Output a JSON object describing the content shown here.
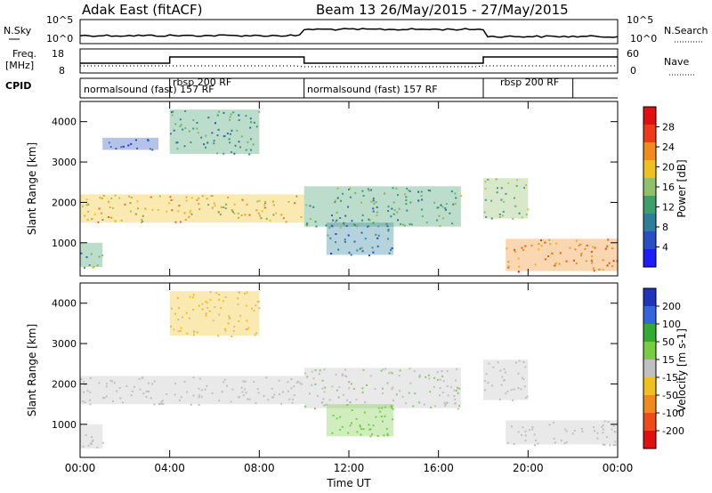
{
  "header": {
    "title_left": "Adak East (fitACF)",
    "title_right": "Beam 13 26/May/2015 - 27/May/2015"
  },
  "summary": {
    "nsky_label": "N.Sky",
    "nsky_ticks": [
      "10^5",
      "10^0"
    ],
    "nsearch_label": "N.Search",
    "nsearch_ticks": [
      "10^5",
      "10^0"
    ],
    "freq_label": "Freq.",
    "freq_unit": "[MHz]",
    "freq_ticks": [
      "18",
      "8"
    ],
    "nave_label": "Nave",
    "nave_ticks": [
      "60",
      "0"
    ],
    "cpid_label": "CPID",
    "cpid_segments": [
      {
        "label": "normalsound (fast) 157 RF",
        "start_h": 0.0,
        "end_h": 4.0
      },
      {
        "label": "rbsp 200 RF",
        "start_h": 4.0,
        "end_h": 10.0
      },
      {
        "label": "normalsound (fast) 157 RF",
        "start_h": 10.0,
        "end_h": 18.0
      },
      {
        "label": "rbsp 200 RF",
        "start_h": 18.0,
        "end_h": 22.0
      }
    ]
  },
  "colors": {
    "power": [
      "#1d1df5",
      "#2a4fc0",
      "#2e7d9a",
      "#3f9f6a",
      "#8fc06a",
      "#f0c020",
      "#f28b1e",
      "#ee3a1a",
      "#e01010"
    ],
    "velocity": [
      "#2233bb",
      "#3366dd",
      "#33aa33",
      "#77cc44",
      "#c0c0c0",
      "#f0c020",
      "#f08a1e",
      "#ee4a1a",
      "#e01010"
    ]
  },
  "chart_data": [
    {
      "type": "heatmap",
      "panel": "power",
      "ylabel": "Slant Range [km]",
      "y_ticks": [
        1000,
        2000,
        3000,
        4000
      ],
      "ylim": [
        180,
        4500
      ],
      "xlim_hours": [
        0,
        24
      ],
      "colorbar_label": "Power [dB]",
      "colorbar_ticks": [
        "28",
        "24",
        "20",
        "16",
        "12",
        "8",
        "4"
      ],
      "colorbar_range": [
        0,
        30
      ],
      "echo_regions": [
        {
          "t0": 0.0,
          "t1": 10.0,
          "r0": 1500,
          "r1": 2200,
          "level": 18
        },
        {
          "t0": 0.0,
          "t1": 1.0,
          "r0": 400,
          "r1": 1000,
          "level": 12
        },
        {
          "t0": 1.0,
          "t1": 3.5,
          "r0": 3300,
          "r1": 3600,
          "level": 6
        },
        {
          "t0": 4.0,
          "t1": 8.0,
          "r0": 3200,
          "r1": 4300,
          "level": 10
        },
        {
          "t0": 10.0,
          "t1": 17.0,
          "r0": 1400,
          "r1": 2400,
          "level": 12
        },
        {
          "t0": 11.0,
          "t1": 14.0,
          "r0": 700,
          "r1": 1500,
          "level": 8
        },
        {
          "t0": 18.0,
          "t1": 20.0,
          "r0": 1600,
          "r1": 2600,
          "level": 14
        },
        {
          "t0": 19.0,
          "t1": 24.0,
          "r0": 300,
          "r1": 1100,
          "level": 22
        }
      ]
    },
    {
      "type": "heatmap",
      "panel": "velocity",
      "ylabel": "Slant Range [km]",
      "y_ticks": [
        1000,
        2000,
        3000,
        4000
      ],
      "ylim": [
        180,
        4500
      ],
      "xlabel": "Time UT",
      "x_ticks": [
        "00:00",
        "04:00",
        "08:00",
        "12:00",
        "16:00",
        "20:00",
        "00:00"
      ],
      "xlim_hours": [
        0,
        24
      ],
      "colorbar_label": "Velocity [m s-1]",
      "colorbar_ticks": [
        "200",
        "100",
        "50",
        "15",
        "-15",
        "-50",
        "-100",
        "-200"
      ],
      "colorbar_range": [
        -250,
        250
      ],
      "echo_regions": [
        {
          "t0": 0.0,
          "t1": 10.0,
          "r0": 1500,
          "r1": 2200,
          "level": 0
        },
        {
          "t0": 0.0,
          "t1": 1.0,
          "r0": 400,
          "r1": 1000,
          "level": 0
        },
        {
          "t0": 4.0,
          "t1": 8.0,
          "r0": 3200,
          "r1": 4300,
          "level": -30
        },
        {
          "t0": 10.0,
          "t1": 17.0,
          "r0": 1400,
          "r1": 2400,
          "level": 20
        },
        {
          "t0": 11.0,
          "t1": 14.0,
          "r0": 700,
          "r1": 1500,
          "level": 60
        },
        {
          "t0": 18.0,
          "t1": 20.0,
          "r0": 1600,
          "r1": 2600,
          "level": 0
        },
        {
          "t0": 19.0,
          "t1": 24.0,
          "r0": 500,
          "r1": 1100,
          "level": 0
        }
      ]
    }
  ]
}
